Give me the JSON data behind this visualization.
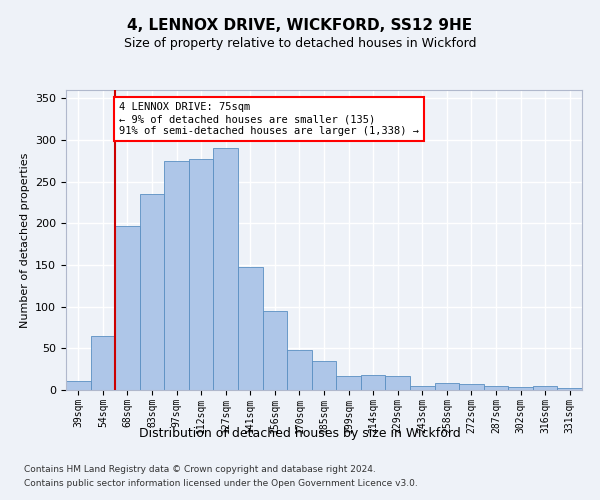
{
  "title": "4, LENNOX DRIVE, WICKFORD, SS12 9HE",
  "subtitle": "Size of property relative to detached houses in Wickford",
  "xlabel": "Distribution of detached houses by size in Wickford",
  "ylabel": "Number of detached properties",
  "categories": [
    "39sqm",
    "54sqm",
    "68sqm",
    "83sqm",
    "97sqm",
    "112sqm",
    "127sqm",
    "141sqm",
    "156sqm",
    "170sqm",
    "185sqm",
    "199sqm",
    "214sqm",
    "229sqm",
    "243sqm",
    "258sqm",
    "272sqm",
    "287sqm",
    "302sqm",
    "316sqm",
    "331sqm"
  ],
  "values": [
    11,
    65,
    197,
    235,
    275,
    277,
    290,
    148,
    95,
    48,
    35,
    17,
    18,
    17,
    5,
    8,
    7,
    5,
    4,
    5,
    3
  ],
  "bar_color": "#aec6e8",
  "bar_edge_color": "#5a8fc2",
  "red_line_x": 1.5,
  "annotation_text": "4 LENNOX DRIVE: 75sqm\n← 9% of detached houses are smaller (135)\n91% of semi-detached houses are larger (1,338) →",
  "annotation_box_color": "white",
  "annotation_box_edge_color": "red",
  "red_line_color": "#cc0000",
  "footnote1": "Contains HM Land Registry data © Crown copyright and database right 2024.",
  "footnote2": "Contains public sector information licensed under the Open Government Licence v3.0.",
  "background_color": "#eef2f8",
  "plot_bg_color": "#eef2f8",
  "ylim": [
    0,
    360
  ],
  "grid_color": "white",
  "title_fontsize": 11,
  "subtitle_fontsize": 9,
  "ylabel_fontsize": 8,
  "xlabel_fontsize": 9,
  "tick_fontsize": 7,
  "annotation_fontsize": 7.5,
  "footnote_fontsize": 6.5
}
